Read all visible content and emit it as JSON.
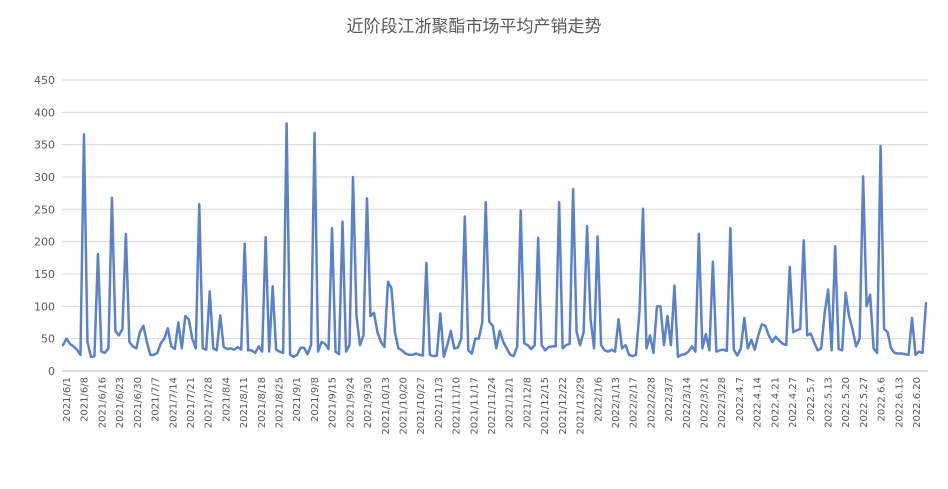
{
  "chart_data": {
    "type": "line",
    "title": "近阶段江浙聚酯市场平均产销走势",
    "xlabel": "",
    "ylabel": "",
    "ylim": [
      0,
      450
    ],
    "yticks": [
      0,
      50,
      100,
      150,
      200,
      250,
      300,
      350,
      400,
      450
    ],
    "grid": "horizontal",
    "legend": "none",
    "line_color": "#5b82c8",
    "x_tick_labels": [
      "2021/6/1",
      "2021/6/8",
      "2021/6/16",
      "2021/6/23",
      "2021/6/30",
      "2021/7/7",
      "2021/7/14",
      "2021/7/21",
      "2021/7/28",
      "2021/8/4",
      "2021/8/11",
      "2021/8/18",
      "2021/8/25",
      "2021/9/1",
      "2021/9/8",
      "2021/9/15",
      "2021/9/24",
      "2021/9/30",
      "2021/10/13",
      "2021/10/20",
      "2021/10/27",
      "2021/11/3",
      "2021/11/10",
      "2021/11/17",
      "2021/11/24",
      "2021/12/1",
      "2021/12/8",
      "2021/12/15",
      "2021/12/22",
      "2021/12/29",
      "2022/1/6",
      "2022/1/13",
      "2022/2/17",
      "2022/2/28",
      "2022/3/7",
      "2022/3/14",
      "2022/3/21",
      "2022/3/28",
      "2022.4.7",
      "2022.4.14",
      "2022.4.21",
      "2022.4.27",
      "2022.5.7",
      "2022.5.13",
      "2022.5.20",
      "2022.5.27",
      "2022.6.6",
      "2022.6.13",
      "2022.6.20"
    ],
    "series": [
      {
        "values": [
          40,
          50,
          42,
          38,
          33,
          25,
          366,
          45,
          22,
          23,
          181,
          30,
          28,
          35,
          268,
          62,
          55,
          65,
          212,
          45,
          38,
          35,
          60,
          70,
          45,
          25,
          25,
          28,
          43,
          50,
          66,
          38,
          34,
          75,
          35,
          85,
          80,
          50,
          35,
          258,
          35,
          33,
          123,
          35,
          32,
          86,
          37,
          34,
          35,
          33,
          37,
          33,
          197,
          32,
          32,
          28,
          38,
          30,
          207,
          30,
          131,
          33,
          30,
          28,
          383,
          25,
          22,
          25,
          36,
          36,
          26,
          40,
          368,
          30,
          45,
          42,
          34,
          221,
          30,
          26,
          231,
          30,
          40,
          300,
          85,
          40,
          55,
          267,
          85,
          90,
          60,
          45,
          37,
          138,
          128,
          60,
          35,
          32,
          27,
          25,
          25,
          27,
          25,
          24,
          167,
          25,
          23,
          24,
          89,
          22,
          40,
          62,
          35,
          36,
          50,
          239,
          32,
          27,
          50,
          50,
          75,
          261,
          76,
          70,
          35,
          62,
          45,
          35,
          25,
          23,
          38,
          248,
          43,
          40,
          34,
          40,
          206,
          40,
          32,
          37,
          38,
          38,
          261,
          35,
          40,
          42,
          281,
          60,
          40,
          60,
          224,
          80,
          35,
          208,
          40,
          32,
          30,
          33,
          30,
          80,
          35,
          40,
          25,
          23,
          25,
          92,
          251,
          35,
          55,
          28,
          100,
          100,
          40,
          85,
          40,
          132,
          22,
          25,
          26,
          30,
          38,
          30,
          212,
          35,
          57,
          32,
          169,
          30,
          32,
          33,
          31,
          221,
          33,
          24,
          35,
          82,
          35,
          48,
          33,
          55,
          72,
          70,
          55,
          45,
          53,
          47,
          42,
          40,
          161,
          60,
          63,
          65,
          202,
          55,
          58,
          44,
          32,
          35,
          90,
          126,
          32,
          193,
          34,
          32,
          121,
          84,
          64,
          38,
          50,
          301,
          100,
          118,
          35,
          28,
          348,
          65,
          60,
          35,
          28,
          27,
          27,
          26,
          25,
          82,
          25,
          30,
          28,
          105
        ]
      }
    ]
  }
}
